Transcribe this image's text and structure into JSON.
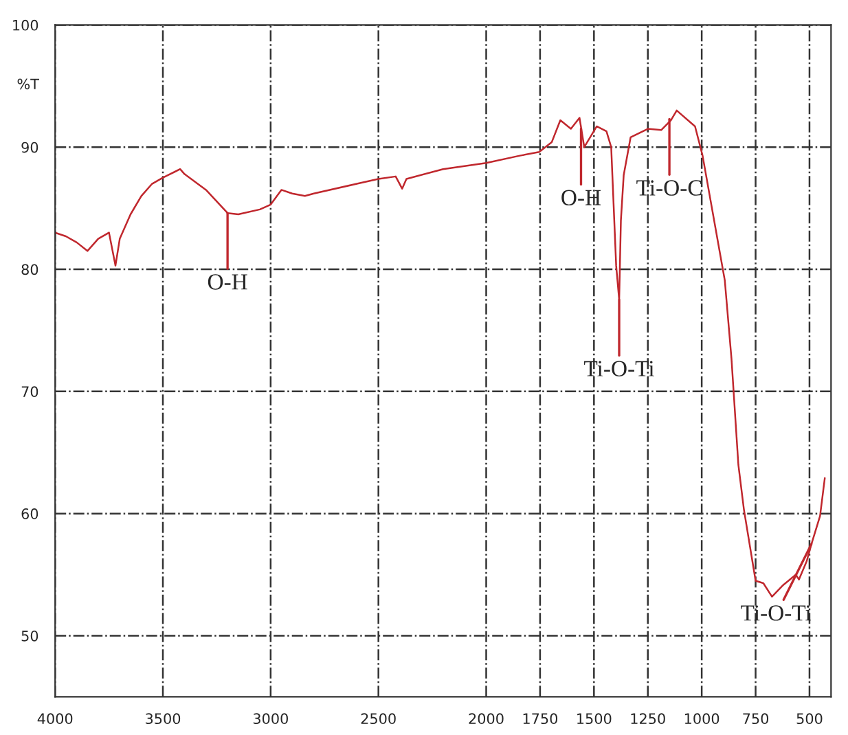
{
  "chart_data": {
    "type": "line",
    "ylabel": "%T",
    "x": [
      4000,
      3950,
      3900,
      3850,
      3800,
      3750,
      3720,
      3700,
      3650,
      3600,
      3550,
      3500,
      3420,
      3400,
      3300,
      3200,
      3150,
      3050,
      3000,
      2950,
      2900,
      2841,
      2800,
      2600,
      2500,
      2420,
      2390,
      2370,
      2200,
      2000,
      1844,
      1754,
      1696,
      1656,
      1607,
      1567,
      1545,
      1487,
      1442,
      1420,
      1397,
      1383,
      1375,
      1362,
      1330,
      1250,
      1188,
      1143,
      1116,
      1031,
      996,
      893,
      862,
      830,
      804,
      750,
      714,
      674,
      625,
      563,
      549,
      513,
      491,
      451,
      429
    ],
    "series": [
      {
        "color": "#c0272d",
        "values": [
          83,
          82.7,
          82.2,
          81.5,
          82.5,
          83,
          80.3,
          82.5,
          84.5,
          86,
          87,
          87.5,
          88.2,
          87.8,
          86.5,
          84.6,
          84.5,
          84.9,
          85.3,
          86.5,
          86.2,
          86.0,
          86.2,
          87.0,
          87.4,
          87.6,
          86.6,
          87.4,
          88.2,
          88.7,
          89.3,
          89.6,
          90.4,
          92.2,
          91.5,
          92.4,
          90,
          91.7,
          91.3,
          90,
          80.3,
          77.5,
          84,
          87.7,
          90.8,
          91.5,
          91.4,
          92.2,
          93.0,
          91.7,
          89.3,
          79.1,
          72.7,
          64,
          60.3,
          54.5,
          54.3,
          53.2,
          54.1,
          55.0,
          54.6,
          56.1,
          57.5,
          59.8,
          62.9
        ]
      }
    ],
    "xlim": [
      4000,
      400
    ],
    "ylim": [
      45,
      100
    ],
    "xticks": [
      4000,
      3500,
      3000,
      2500,
      2000,
      1750,
      1500,
      1250,
      1000,
      750,
      500
    ],
    "yticks": [
      50,
      60,
      70,
      80,
      90,
      100
    ],
    "grid": true,
    "marker": "none",
    "line_style": "solid",
    "legend": false,
    "annotations": [
      {
        "text": "O-H",
        "x": 3200,
        "y": 84.6
      },
      {
        "text": "O-H",
        "x": 1560,
        "y": 91.5
      },
      {
        "text": "Ti-O-Ti",
        "x": 1383,
        "y": 77.5
      },
      {
        "text": "Ti-O-C",
        "x": 1150,
        "y": 92.3
      },
      {
        "text": "Ti-O-Ti",
        "x": 491,
        "y": 57.5
      }
    ]
  }
}
